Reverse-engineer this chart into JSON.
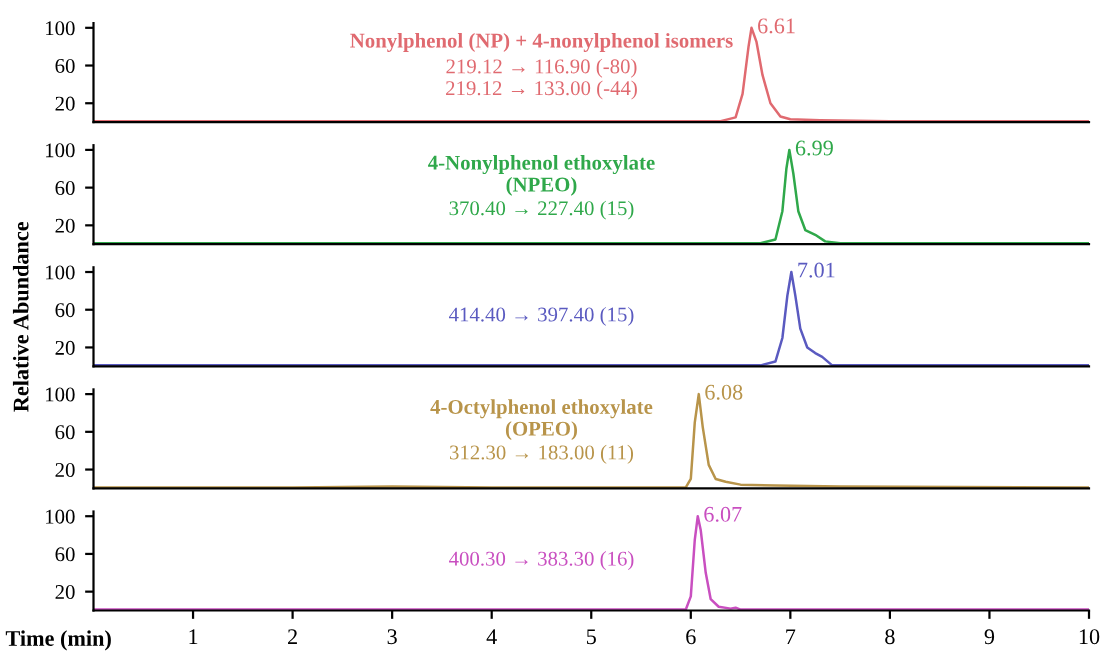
{
  "chart_data": [
    {
      "type": "line",
      "title": "Nonylphenol (NP) + 4-nonylphenol isomers",
      "subtitle": "219.12 → 116.90 (-80)\n219.12 → 133.00 (-44)",
      "xlim": [
        0,
        10
      ],
      "ylim": [
        0,
        105
      ],
      "yticks": [
        20,
        60,
        100
      ],
      "tick_labels": "y",
      "annotations": [
        {
          "text": "6.61",
          "x": 6.61,
          "y": 100
        }
      ],
      "series": [
        {
          "color": "#e06a70",
          "x": [
            0,
            3,
            6.3,
            6.45,
            6.52,
            6.58,
            6.61,
            6.66,
            6.72,
            6.8,
            6.9,
            7.0,
            7.3,
            8,
            10
          ],
          "values": [
            1,
            1,
            1,
            5,
            30,
            80,
            100,
            85,
            50,
            20,
            6,
            3,
            2,
            1,
            1
          ]
        }
      ]
    },
    {
      "type": "line",
      "title": "4-Nonylphenol ethoxylate\n(NPEO)",
      "subtitle": "370.40 → 227.40 (15)",
      "xlim": [
        0,
        10
      ],
      "ylim": [
        0,
        105
      ],
      "yticks": [
        20,
        60,
        100
      ],
      "tick_labels": "y",
      "annotations": [
        {
          "text": "6.99",
          "x": 6.99,
          "y": 100
        }
      ],
      "series": [
        {
          "color": "#2fa84a",
          "x": [
            0,
            6.7,
            6.85,
            6.92,
            6.96,
            6.99,
            7.03,
            7.08,
            7.15,
            7.25,
            7.35,
            7.5,
            10
          ],
          "values": [
            1,
            1,
            5,
            35,
            80,
            100,
            75,
            35,
            15,
            10,
            3,
            1,
            1
          ]
        }
      ]
    },
    {
      "type": "line",
      "subtitle": "414.40 → 397.40 (15)",
      "ylabel": "Relative Abundance",
      "xlim": [
        0,
        10
      ],
      "ylim": [
        0,
        105
      ],
      "yticks": [
        20,
        60,
        100
      ],
      "tick_labels": "y",
      "annotations": [
        {
          "text": "7.01",
          "x": 7.01,
          "y": 100
        }
      ],
      "series": [
        {
          "color": "#5a5ac0",
          "x": [
            0,
            6.7,
            6.85,
            6.92,
            6.97,
            7.01,
            7.05,
            7.1,
            7.17,
            7.25,
            7.32,
            7.42,
            10
          ],
          "values": [
            1,
            1,
            5,
            30,
            75,
            100,
            75,
            40,
            20,
            14,
            10,
            1,
            1
          ]
        }
      ]
    },
    {
      "type": "line",
      "title": "4-Octylphenol ethoxylate\n(OPEO)",
      "subtitle": "312.30 → 183.00 (11)",
      "xlim": [
        0,
        10
      ],
      "ylim": [
        0,
        105
      ],
      "yticks": [
        20,
        60,
        100
      ],
      "tick_labels": "y",
      "annotations": [
        {
          "text": "6.08",
          "x": 6.08,
          "y": 100
        }
      ],
      "series": [
        {
          "color": "#b8944a",
          "x": [
            0,
            2,
            3,
            4,
            5.95,
            6.0,
            6.04,
            6.08,
            6.12,
            6.18,
            6.25,
            6.35,
            6.5,
            6.85,
            7.5,
            10
          ],
          "values": [
            1,
            1,
            2,
            1,
            1,
            10,
            70,
            100,
            65,
            25,
            10,
            7,
            4,
            3,
            2,
            1
          ]
        }
      ]
    },
    {
      "type": "line",
      "title": null,
      "subtitle": "400.30 → 383.30 (16)",
      "xlabel": "Time (min)",
      "xlim": [
        0,
        10
      ],
      "xticks": [
        1,
        2,
        3,
        4,
        5,
        6,
        7,
        8,
        9,
        10
      ],
      "ylim": [
        0,
        105
      ],
      "yticks": [
        20,
        60,
        100
      ],
      "annotations": [
        {
          "text": "6.07",
          "x": 6.07,
          "y": 100
        }
      ],
      "series": [
        {
          "color": "#c94fc0",
          "x": [
            0,
            5.95,
            6.0,
            6.04,
            6.07,
            6.1,
            6.15,
            6.2,
            6.28,
            6.4,
            6.45,
            6.5,
            6.7,
            10
          ],
          "values": [
            1,
            1,
            15,
            75,
            100,
            85,
            40,
            12,
            4,
            2,
            3,
            1,
            1,
            1
          ]
        }
      ]
    }
  ]
}
